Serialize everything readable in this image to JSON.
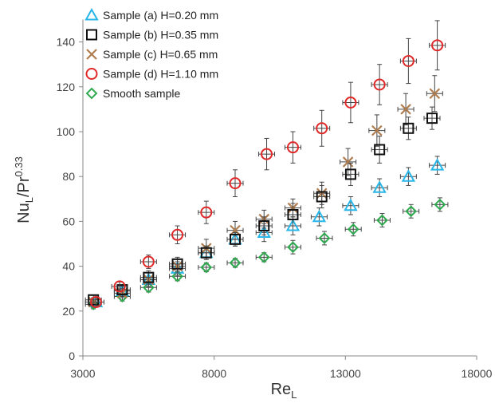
{
  "chart_data": {
    "type": "scatter",
    "title": "",
    "xlabel": {
      "main": "Re",
      "sub": "L"
    },
    "ylabel": {
      "main": "Nu",
      "sub": "L",
      "mid": "/Pr",
      "sup": "0.33"
    },
    "xlim": [
      3000,
      18000
    ],
    "ylim": [
      0,
      150
    ],
    "xticks": [
      3000,
      8000,
      13000,
      18000
    ],
    "yticks": [
      0,
      20,
      40,
      60,
      80,
      100,
      120,
      140
    ],
    "grid": false,
    "legend_position": "top-left",
    "series": [
      {
        "name": "Sample (a) H=0.20 mm",
        "marker": "triangle",
        "color": "#29b6e8",
        "x": [
          3500,
          4500,
          5500,
          6600,
          7700,
          8800,
          9900,
          11000,
          12000,
          13200,
          14300,
          15400,
          16500
        ],
        "y": [
          24,
          29,
          34,
          39,
          46,
          52,
          55,
          58,
          62,
          67,
          75,
          80,
          85
        ],
        "err": [
          2,
          2,
          3,
          3,
          3,
          3,
          4,
          4,
          4,
          4,
          4,
          4,
          4
        ]
      },
      {
        "name": "Sample (b) H=0.35 mm",
        "marker": "square",
        "color": "#111111",
        "x": [
          3400,
          4500,
          5500,
          6600,
          7700,
          8800,
          9900,
          11000,
          12100,
          13200,
          14300,
          15400,
          16300
        ],
        "y": [
          25,
          29.5,
          35,
          41,
          46,
          52,
          58,
          63,
          71,
          81,
          92,
          101.5,
          106
        ],
        "err": [
          2,
          2,
          3,
          3,
          3,
          3,
          4,
          5,
          5,
          5,
          6,
          5,
          5
        ]
      },
      {
        "name": "Sample (c) H=0.65 mm",
        "marker": "cross",
        "color": "#b07d4f",
        "x": [
          3400,
          4500,
          5500,
          6600,
          7700,
          8800,
          9900,
          11000,
          12100,
          13100,
          14200,
          15300,
          16400
        ],
        "y": [
          24,
          28,
          34,
          40,
          48,
          56,
          61,
          66,
          72.5,
          86.5,
          100.5,
          110,
          117
        ],
        "err": [
          2,
          2,
          3,
          3,
          4,
          4,
          4,
          4,
          5,
          6,
          7,
          7,
          8
        ]
      },
      {
        "name": "Sample (d) H=1.10 mm",
        "marker": "circle",
        "color": "#e02828",
        "x": [
          3500,
          4400,
          5500,
          6600,
          7700,
          8800,
          10000,
          11000,
          12100,
          13200,
          14300,
          15400,
          16500
        ],
        "y": [
          24,
          31,
          42,
          54,
          64,
          77,
          90,
          93,
          101.5,
          113,
          121,
          131.5,
          138.5
        ],
        "err": [
          2,
          2,
          3,
          4,
          5,
          6,
          7,
          7,
          8,
          9,
          9,
          10,
          11
        ]
      },
      {
        "name": "Smooth sample",
        "marker": "diamond",
        "color": "#2eaa4f",
        "x": [
          3400,
          4500,
          5500,
          6600,
          7700,
          8800,
          9900,
          11000,
          12200,
          13300,
          14400,
          15500,
          16600
        ],
        "y": [
          23,
          26.5,
          30.5,
          35.5,
          39.5,
          41.5,
          44,
          48.5,
          52.5,
          56.5,
          60.5,
          64.5,
          67.5
        ],
        "err": [
          2,
          2,
          2,
          2,
          2,
          2,
          2,
          3,
          3,
          3,
          3,
          3,
          3
        ]
      }
    ]
  }
}
